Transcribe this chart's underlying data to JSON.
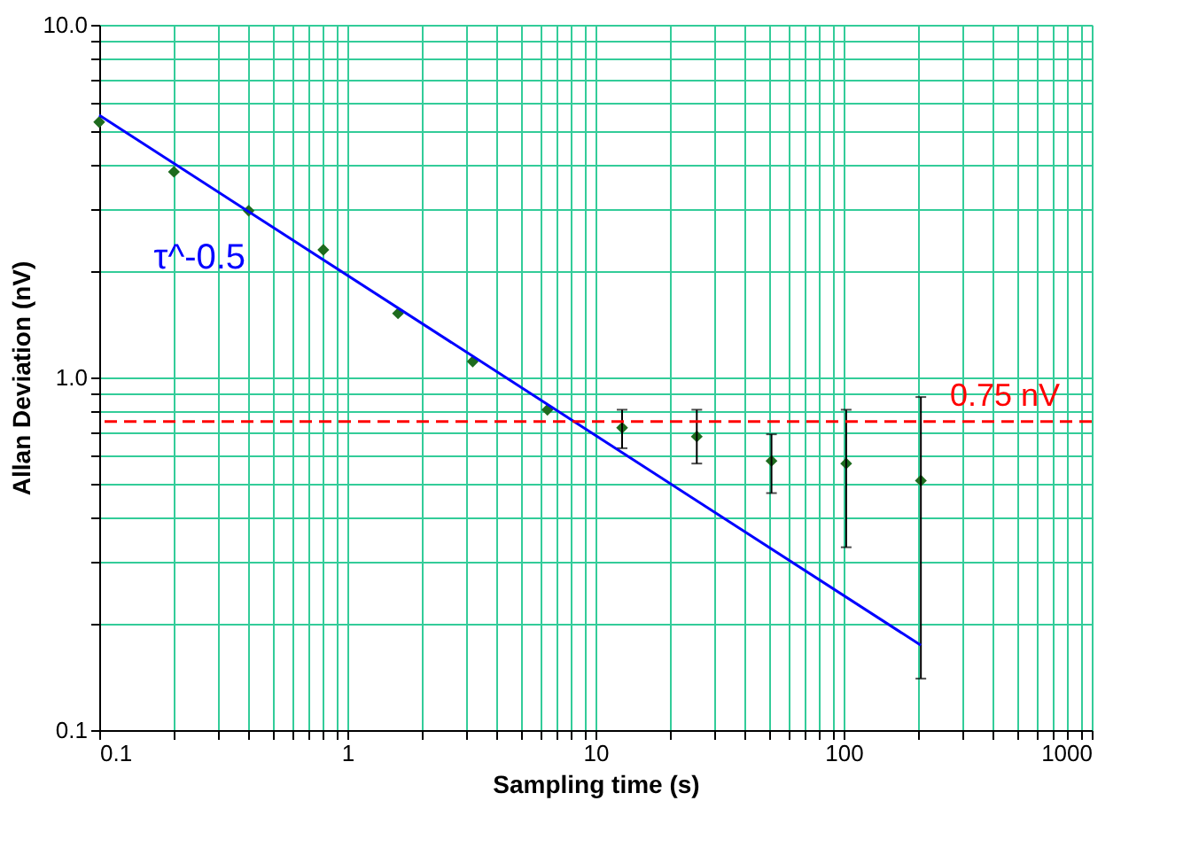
{
  "chart_data": {
    "type": "scatter",
    "xlabel": "Sampling time (s)",
    "ylabel": "Allan Deviation (nV)",
    "log": "xy",
    "grid": true,
    "marker": "diamond",
    "xlim": [
      0.1,
      1000
    ],
    "ylim": [
      0.1,
      10
    ],
    "xticks": [
      0.1,
      {
        "value": 0.2,
        "label": null
      },
      {
        "value": 0.3,
        "label": null
      },
      {
        "value": 0.4,
        "label": null
      },
      {
        "value": 0.5,
        "label": null
      },
      {
        "value": 0.6,
        "label": null
      },
      {
        "value": 0.7,
        "label": null
      },
      {
        "value": 0.8,
        "label": null
      },
      {
        "value": 0.9,
        "label": null
      },
      1,
      {
        "value": 2,
        "label": null
      },
      {
        "value": 3,
        "label": null
      },
      {
        "value": 4,
        "label": null
      },
      {
        "value": 5,
        "label": null
      },
      {
        "value": 6,
        "label": null
      },
      {
        "value": 7,
        "label": null
      },
      {
        "value": 8,
        "label": null
      },
      {
        "value": 9,
        "label": null
      },
      10,
      {
        "value": 20,
        "label": null
      },
      {
        "value": 30,
        "label": null
      },
      {
        "value": 40,
        "label": null
      },
      {
        "value": 50,
        "label": null
      },
      {
        "value": 60,
        "label": null
      },
      {
        "value": 70,
        "label": null
      },
      {
        "value": 80,
        "label": null
      },
      {
        "value": 90,
        "label": null
      },
      100,
      {
        "value": 200,
        "label": null
      },
      {
        "value": 300,
        "label": null
      },
      {
        "value": 400,
        "label": null
      },
      {
        "value": 500,
        "label": null
      },
      {
        "value": 600,
        "label": null
      },
      {
        "value": 700,
        "label": null
      },
      {
        "value": 800,
        "label": null
      },
      {
        "value": 900,
        "label": null
      },
      1000
    ],
    "yticks": [
      {
        "value": 0.1,
        "label": "0.1"
      },
      {
        "value": 0.2,
        "label": null
      },
      {
        "value": 0.3,
        "label": null
      },
      {
        "value": 0.4,
        "label": null
      },
      {
        "value": 0.5,
        "label": null
      },
      {
        "value": 0.6,
        "label": null
      },
      {
        "value": 0.7,
        "label": null
      },
      {
        "value": 0.8,
        "label": null
      },
      {
        "value": 0.9,
        "label": null
      },
      {
        "value": 1,
        "label": "1.0"
      },
      {
        "value": 2,
        "label": null
      },
      {
        "value": 3,
        "label": null
      },
      {
        "value": 4,
        "label": null
      },
      {
        "value": 5,
        "label": null
      },
      {
        "value": 6,
        "label": null
      },
      {
        "value": 7,
        "label": null
      },
      {
        "value": 8,
        "label": null
      },
      {
        "value": 9,
        "label": null
      },
      {
        "value": 10,
        "label": "10.0"
      }
    ],
    "series": [
      {
        "type": "scatter",
        "color": "#1e6b1e",
        "x": [
          0.1,
          0.2,
          0.4,
          0.8,
          1.6,
          3.2,
          6.4,
          12.8,
          25.6,
          51.2,
          102.4,
          204.8
        ],
        "values": [
          5.3,
          3.83,
          2.97,
          2.3,
          1.52,
          1.11,
          0.81,
          0.72,
          0.68,
          0.58,
          0.57,
          0.51
        ],
        "errors": [
          null,
          null,
          null,
          null,
          null,
          null,
          null,
          [
            0.63,
            0.81
          ],
          [
            0.57,
            0.81
          ],
          [
            0.47,
            0.69
          ],
          [
            0.33,
            0.81
          ],
          [
            0.14,
            0.88
          ]
        ]
      },
      {
        "type": "line",
        "color": "#0000ff",
        "x": [
          0.1,
          204.8
        ],
        "values": [
          5.54,
          0.174
        ],
        "marker": "none",
        "line_style": "solid"
      }
    ],
    "ref_lines": [
      {
        "axis": "y",
        "value": 0.75,
        "label": "0.75 nV",
        "color": "#ff0000",
        "line_style": "dashed"
      }
    ],
    "annotations": [
      "τ^-0.5"
    ]
  }
}
